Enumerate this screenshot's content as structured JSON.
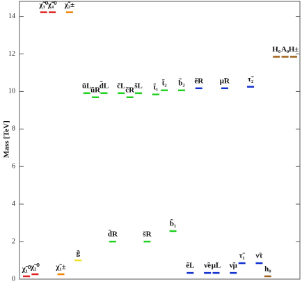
{
  "chart_data": {
    "type": "spectrum",
    "y_label": "Mass [TeV]",
    "ylim": [
      0,
      14.8
    ],
    "yticks": [
      0,
      2,
      4,
      6,
      8,
      10,
      12,
      14
    ],
    "series": [
      {
        "color": "#e02020",
        "labels": [
          "χ̃₁⁰",
          "χ̃₂⁰",
          "χ̃₃⁰",
          "χ̃₄⁰"
        ],
        "values": [
          0.15,
          0.26,
          14.22,
          14.22
        ]
      },
      {
        "color": "#f08000",
        "labels": [
          "χ̃₁±",
          "χ̃₂±"
        ],
        "values": [
          0.26,
          14.22
        ]
      },
      {
        "color": "#f0e020",
        "labels": [
          "g̃"
        ],
        "values": [
          1.0
        ]
      },
      {
        "color": "#20d020",
        "labels": [
          "ũL",
          "ũR",
          "d̃L",
          "d̃R",
          "c̃L",
          "c̃R",
          "s̃L",
          "s̃R",
          "t̃₁",
          "t̃₂",
          "b̃₁",
          "b̃₂"
        ],
        "values": [
          9.91,
          9.69,
          9.91,
          2.0,
          9.91,
          9.69,
          9.91,
          2.0,
          9.84,
          10.06,
          2.56,
          10.06
        ]
      },
      {
        "color": "#1030d0",
        "labels": [
          "ẽL",
          "ẽR",
          "ν̃e",
          "μ̃L",
          "μ̃R",
          "ν̃μ",
          "τ̃₁",
          "τ̃₂",
          "ν̃τ"
        ],
        "values": [
          0.33,
          10.17,
          0.33,
          0.33,
          10.17,
          0.33,
          0.85,
          10.25,
          0.85
        ]
      },
      {
        "color": "#a0601a",
        "labels": [
          "h₀",
          "H₀",
          "A₀",
          "H±"
        ],
        "values": [
          0.15,
          11.85,
          11.85,
          11.85
        ]
      }
    ]
  }
}
